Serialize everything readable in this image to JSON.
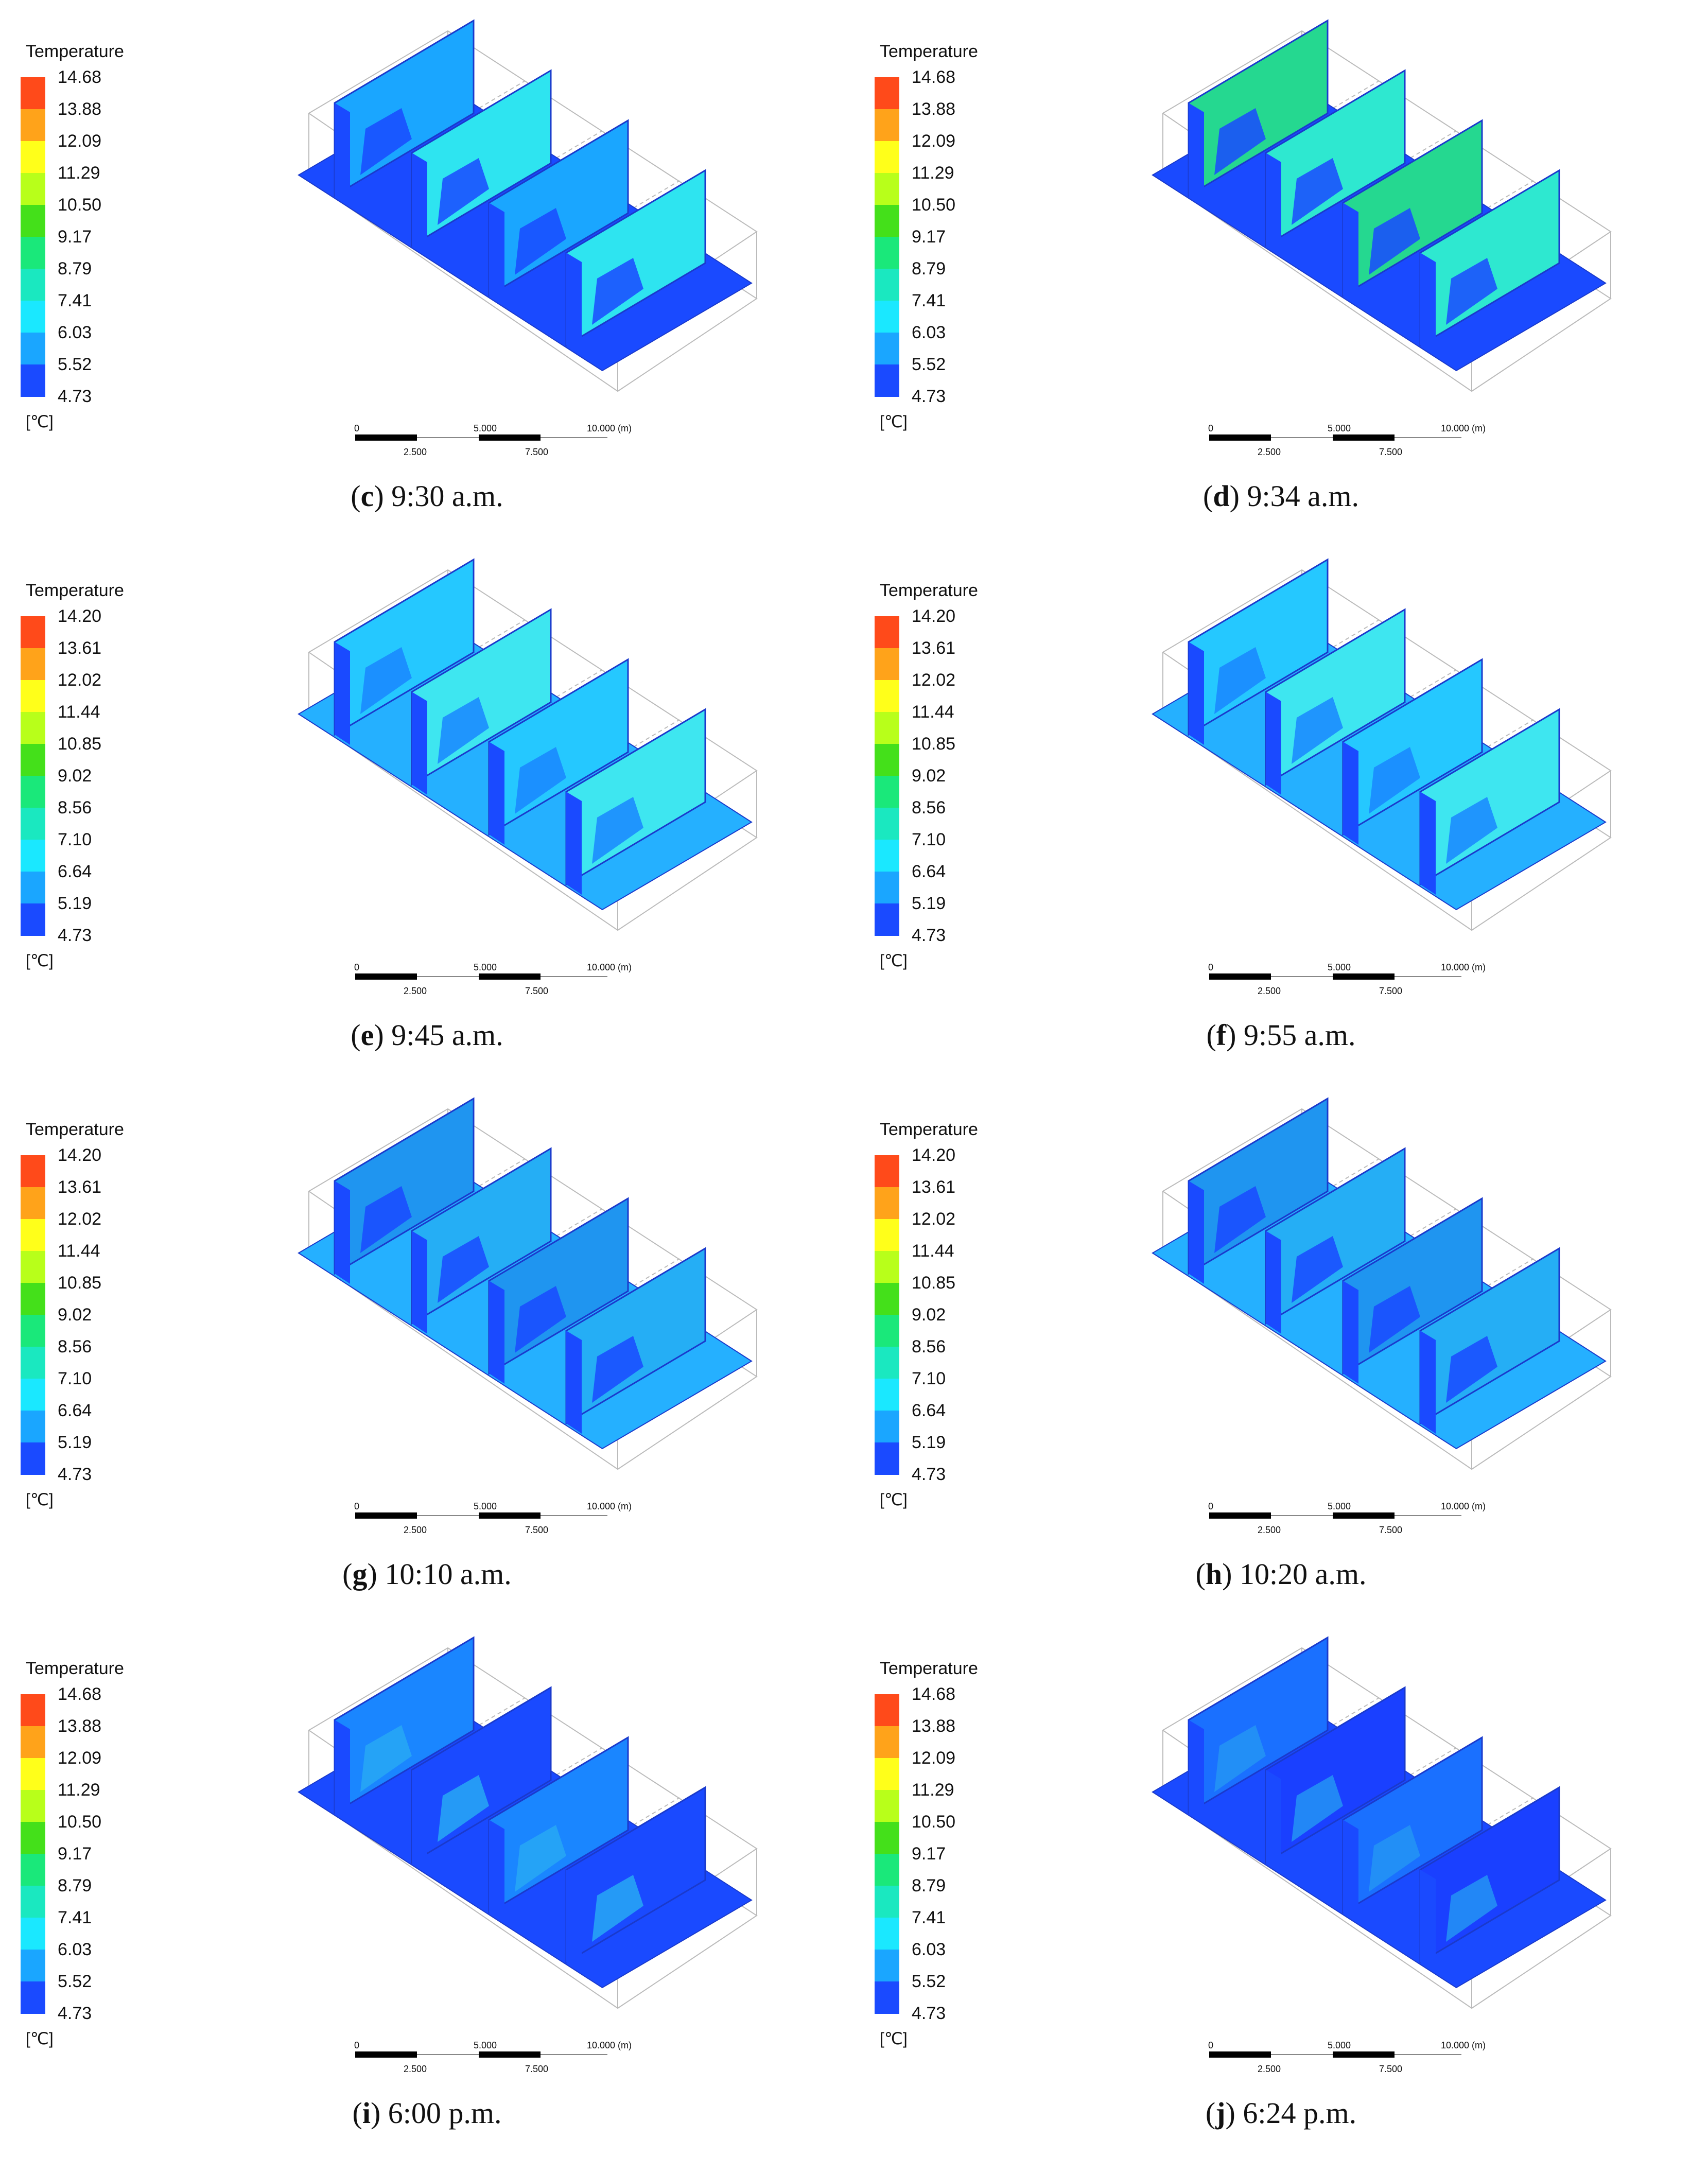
{
  "legend_title": "Temperature",
  "unit": "[℃]",
  "colors": [
    "#ff4a1a",
    "#ffa31a",
    "#ffff1a",
    "#b8ff1a",
    "#44e01a",
    "#1ae87a",
    "#1ae8c0",
    "#1ae8ff",
    "#1aa6ff",
    "#1a4aff"
  ],
  "scales": {
    "set_a": [
      "14.68",
      "13.88",
      "12.09",
      "11.29",
      "10.50",
      "9.17",
      "8.79",
      "7.41",
      "6.03",
      "5.52",
      "4.73"
    ],
    "set_b": [
      "14.20",
      "13.61",
      "12.02",
      "11.44",
      "10.85",
      "9.02",
      "8.56",
      "7.10",
      "6.64",
      "5.19",
      "4.73"
    ]
  },
  "scale_bar": {
    "l0": "0",
    "l1": "2.500",
    "l2": "5.000",
    "l3": "7.500",
    "l4": "10.000",
    "unit": "(m)"
  },
  "panels": [
    {
      "letter": "c",
      "time": "9:30 a.m.",
      "scale": "set_a",
      "tone": "cool1"
    },
    {
      "letter": "d",
      "time": "9:34 a.m.",
      "scale": "set_a",
      "tone": "warm1"
    },
    {
      "letter": "e",
      "time": "9:45 a.m.",
      "scale": "set_b",
      "tone": "cyan"
    },
    {
      "letter": "f",
      "time": "9:55 a.m.",
      "scale": "set_b",
      "tone": "cyan"
    },
    {
      "letter": "g",
      "time": "10:10 a.m.",
      "scale": "set_b",
      "tone": "mid"
    },
    {
      "letter": "h",
      "time": "10:20 a.m.",
      "scale": "set_b",
      "tone": "mid"
    },
    {
      "letter": "i",
      "time": "6:00 p.m.",
      "scale": "set_a",
      "tone": "dark"
    },
    {
      "letter": "j",
      "time": "6:24 p.m.",
      "scale": "set_a",
      "tone": "darker"
    }
  ]
}
